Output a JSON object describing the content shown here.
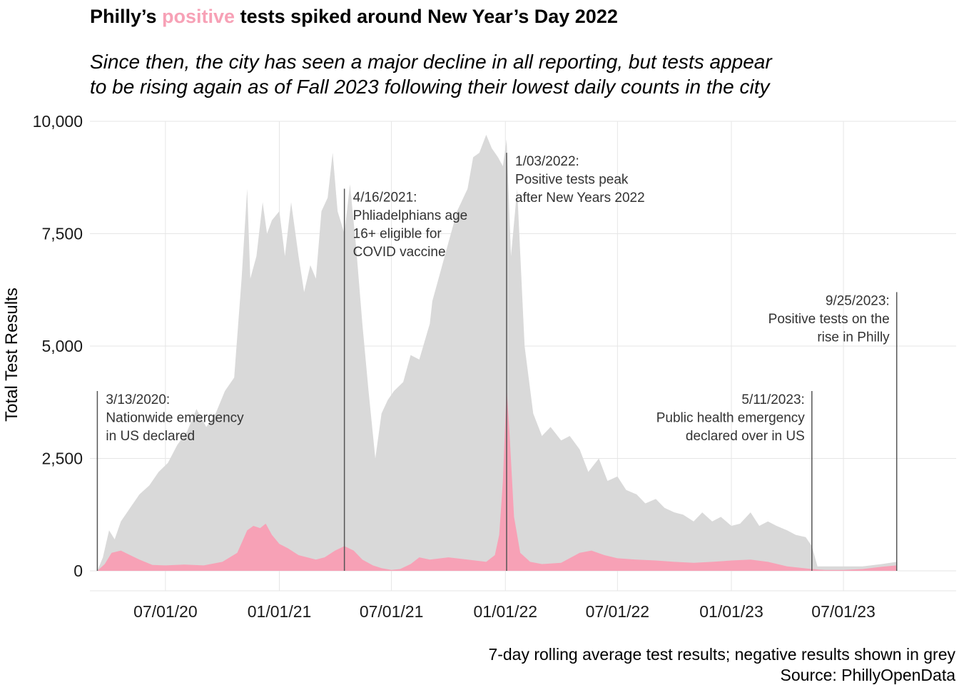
{
  "chart_data": {
    "type": "area",
    "title_parts": [
      "Philly’s ",
      "positive",
      " tests spiked around New Year’s Day 2022"
    ],
    "subtitle_lines": [
      "Since then, the city has seen a major decline in all reporting, but tests appear",
      "to be rising again as of Fall 2023 following their lowest daily counts in the city"
    ],
    "ylabel": "Total Test Results",
    "xlabel": "",
    "ylim": [
      0,
      10000
    ],
    "y_ticks": [
      0,
      2500,
      5000,
      7500,
      10000
    ],
    "y_tick_labels": [
      "0",
      "2,500",
      "5,000",
      "7,500",
      "10,000"
    ],
    "xlim": [
      "2020-03-01",
      "2023-12-30"
    ],
    "x_ticks": [
      "2020-07-01",
      "2021-01-01",
      "2021-07-01",
      "2022-01-01",
      "2022-07-01",
      "2023-01-01",
      "2023-07-01"
    ],
    "x_tick_labels": [
      "07/01/20",
      "01/01/21",
      "07/01/21",
      "01/01/22",
      "07/01/22",
      "01/01/23",
      "07/01/23"
    ],
    "grid": true,
    "colors": {
      "positive": "#f7a1b6",
      "total": "#d9d9d9",
      "grid": "#e6e6e6",
      "annotation_line": "#555555"
    },
    "series": [
      {
        "name": "positive",
        "x": [
          "2020-03-13",
          "2020-03-25",
          "2020-04-05",
          "2020-04-20",
          "2020-05-05",
          "2020-05-20",
          "2020-06-10",
          "2020-07-01",
          "2020-08-01",
          "2020-09-01",
          "2020-10-01",
          "2020-10-25",
          "2020-11-10",
          "2020-11-20",
          "2020-12-01",
          "2020-12-10",
          "2020-12-20",
          "2021-01-01",
          "2021-01-15",
          "2021-02-01",
          "2021-02-15",
          "2021-03-01",
          "2021-03-15",
          "2021-04-01",
          "2021-04-16",
          "2021-05-01",
          "2021-05-15",
          "2021-06-01",
          "2021-06-15",
          "2021-07-01",
          "2021-07-15",
          "2021-08-01",
          "2021-08-15",
          "2021-09-01",
          "2021-10-01",
          "2021-11-01",
          "2021-12-01",
          "2021-12-15",
          "2021-12-22",
          "2021-12-28",
          "2022-01-03",
          "2022-01-08",
          "2022-01-15",
          "2022-01-25",
          "2022-02-10",
          "2022-03-01",
          "2022-04-01",
          "2022-05-01",
          "2022-05-20",
          "2022-06-10",
          "2022-07-01",
          "2022-08-01",
          "2022-09-01",
          "2022-10-01",
          "2022-11-01",
          "2022-12-01",
          "2023-01-01",
          "2023-02-01",
          "2023-03-01",
          "2023-04-01",
          "2023-05-11",
          "2023-06-01",
          "2023-07-01",
          "2023-08-01",
          "2023-09-01",
          "2023-09-25"
        ],
        "values": [
          0,
          150,
          400,
          450,
          350,
          250,
          130,
          120,
          140,
          120,
          200,
          400,
          900,
          1000,
          950,
          1050,
          800,
          600,
          500,
          350,
          300,
          250,
          300,
          450,
          550,
          450,
          250,
          120,
          60,
          20,
          40,
          150,
          300,
          250,
          300,
          250,
          200,
          350,
          800,
          2000,
          4100,
          3000,
          1200,
          400,
          200,
          150,
          180,
          400,
          450,
          350,
          280,
          250,
          230,
          200,
          180,
          200,
          230,
          250,
          200,
          100,
          40,
          20,
          20,
          40,
          90,
          120
        ]
      },
      {
        "name": "total",
        "x": [
          "2020-03-13",
          "2020-03-22",
          "2020-04-01",
          "2020-04-10",
          "2020-04-20",
          "2020-05-05",
          "2020-05-20",
          "2020-06-05",
          "2020-06-20",
          "2020-07-05",
          "2020-07-20",
          "2020-08-05",
          "2020-08-20",
          "2020-09-05",
          "2020-09-20",
          "2020-10-05",
          "2020-10-20",
          "2020-11-01",
          "2020-11-10",
          "2020-11-15",
          "2020-11-25",
          "2020-12-05",
          "2020-12-12",
          "2020-12-20",
          "2021-01-01",
          "2021-01-10",
          "2021-01-20",
          "2021-02-01",
          "2021-02-10",
          "2021-02-20",
          "2021-03-01",
          "2021-03-10",
          "2021-03-20",
          "2021-03-28",
          "2021-04-05",
          "2021-04-16",
          "2021-04-25",
          "2021-05-05",
          "2021-05-15",
          "2021-05-25",
          "2021-06-05",
          "2021-06-15",
          "2021-06-25",
          "2021-07-05",
          "2021-07-20",
          "2021-08-01",
          "2021-08-15",
          "2021-09-01",
          "2021-09-05",
          "2021-09-15",
          "2021-10-01",
          "2021-10-15",
          "2021-11-01",
          "2021-11-10",
          "2021-11-20",
          "2021-12-01",
          "2021-12-10",
          "2021-12-20",
          "2021-12-28",
          "2022-01-03",
          "2022-01-10",
          "2022-01-20",
          "2022-02-01",
          "2022-02-15",
          "2022-03-01",
          "2022-03-15",
          "2022-04-01",
          "2022-04-15",
          "2022-05-01",
          "2022-05-15",
          "2022-06-01",
          "2022-06-15",
          "2022-07-01",
          "2022-07-15",
          "2022-08-01",
          "2022-08-15",
          "2022-09-01",
          "2022-09-15",
          "2022-10-01",
          "2022-10-15",
          "2022-11-01",
          "2022-11-15",
          "2022-12-01",
          "2022-12-15",
          "2023-01-01",
          "2023-01-15",
          "2023-02-01",
          "2023-02-15",
          "2023-03-01",
          "2023-03-15",
          "2023-04-01",
          "2023-04-15",
          "2023-05-01",
          "2023-05-11",
          "2023-05-20",
          "2023-06-01",
          "2023-07-01",
          "2023-08-01",
          "2023-09-01",
          "2023-09-25"
        ],
        "values": [
          0,
          300,
          900,
          700,
          1100,
          1400,
          1700,
          1900,
          2200,
          2400,
          2800,
          3100,
          3600,
          3200,
          3500,
          4000,
          4300,
          6500,
          8500,
          6500,
          7000,
          8200,
          7500,
          7800,
          8000,
          7000,
          8200,
          7000,
          6200,
          6800,
          6500,
          8000,
          8300,
          9300,
          8000,
          7500,
          8600,
          7200,
          5500,
          4000,
          2500,
          3500,
          3800,
          4000,
          4200,
          4800,
          4700,
          5500,
          6000,
          6500,
          7300,
          8000,
          8500,
          9200,
          9300,
          9700,
          9400,
          9200,
          9000,
          9600,
          7000,
          8500,
          5000,
          3500,
          3000,
          3200,
          2900,
          3000,
          2700,
          2200,
          2500,
          2000,
          2100,
          1800,
          1700,
          1500,
          1600,
          1400,
          1300,
          1250,
          1100,
          1300,
          1100,
          1200,
          1000,
          1050,
          1300,
          1000,
          1100,
          1000,
          900,
          800,
          750,
          550,
          100,
          100,
          100,
          100,
          150,
          200
        ]
      }
    ],
    "annotations": [
      {
        "date": "2020-03-13",
        "line_top": 4000,
        "lines": [
          "3/13/2020:",
          "Nationwide emergency",
          "in US declared"
        ],
        "align": "left"
      },
      {
        "date": "2021-04-16",
        "line_top": 8500,
        "lines": [
          "4/16/2021:",
          "Phliadelphians age",
          "16+ eligible for",
          "COVID vaccine"
        ],
        "align": "left"
      },
      {
        "date": "2022-01-03",
        "line_top": 9300,
        "lines": [
          "1/03/2022:",
          "Positive tests peak",
          "after New Years 2022"
        ],
        "align": "left"
      },
      {
        "date": "2023-05-11",
        "line_top": 4000,
        "lines": [
          "5/11/2023:",
          "Public health emergency",
          "declared over in US"
        ],
        "align": "right"
      },
      {
        "date": "2023-09-25",
        "line_top": 6200,
        "lines": [
          "9/25/2023:",
          "Positive tests on the",
          "rise in Philly"
        ],
        "align": "right"
      }
    ],
    "caption_lines": [
      "7-day rolling average test results; negative results shown in grey",
      "Source: PhillyOpenData"
    ]
  }
}
